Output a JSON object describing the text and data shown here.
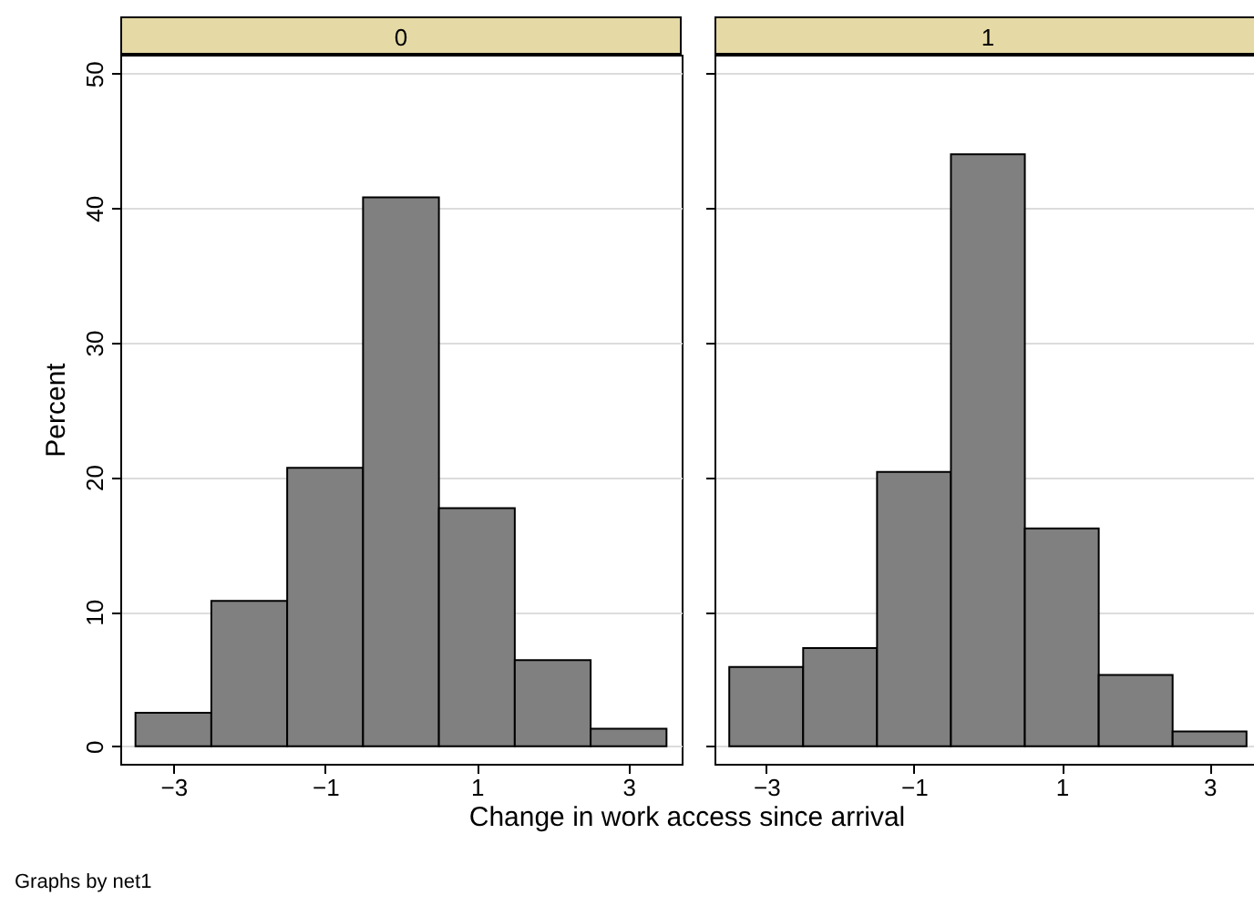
{
  "chart_data": [
    {
      "type": "histogram",
      "title": "0",
      "ylabel": "Percent",
      "xlabel": "Change in work access since arrival",
      "annotations": [
        "Graphs by net1"
      ],
      "bins": [
        -3.5,
        -2.5,
        -1.5,
        -0.5,
        0.5,
        1.5,
        2.5,
        3.5
      ],
      "values": [
        2.5,
        10.8,
        20.7,
        40.8,
        17.7,
        6.4,
        1.3
      ],
      "color": "#808080",
      "xlim": [
        -3.7,
        3.7
      ],
      "xticks": [
        -3,
        -1,
        1,
        3
      ],
      "ylim": [
        -1.3,
        51.4
      ],
      "yticks": [
        0,
        10,
        20,
        30,
        40,
        50
      ],
      "grid": "y"
    },
    {
      "type": "histogram",
      "title": "1",
      "bins": [
        -3.5,
        -2.5,
        -1.5,
        -0.5,
        0.5,
        1.5,
        2.5,
        3.5
      ],
      "values": [
        5.9,
        7.3,
        20.4,
        44.0,
        16.2,
        5.3,
        1.1
      ],
      "color": "#808080",
      "xlim": [
        -3.7,
        3.7
      ],
      "xticks": [
        -3,
        -1,
        1,
        3
      ],
      "ylim": [
        -1.3,
        51.4
      ],
      "yticks": [
        0,
        10,
        20,
        30,
        40,
        50
      ],
      "grid": "y",
      "tick_labels": "x"
    }
  ]
}
